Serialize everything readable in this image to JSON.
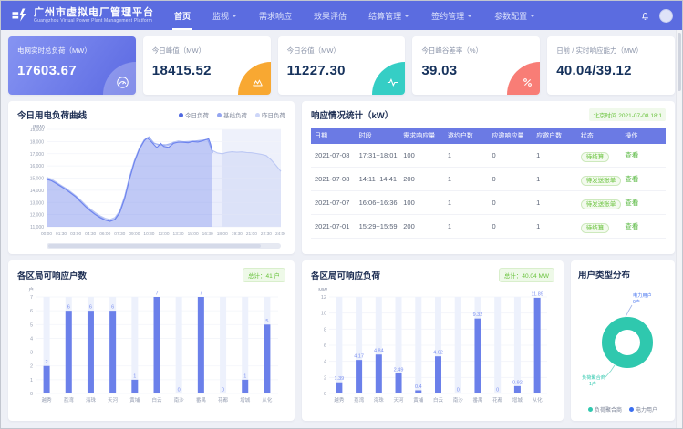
{
  "theme": {
    "header_bg": "#5b6ce0",
    "accent_blue": "#6b80ea",
    "bar_track": "#edf1fc",
    "value_label": "#7b8ff0",
    "axis_label": "#9aa2b4",
    "green": "#67c23a",
    "value_text": "#16325c"
  },
  "header": {
    "title": "广州市虚拟电厂管理平台",
    "subtitle": "Guangzhou Virtual Power Plant Management Platform",
    "nav": [
      {
        "label": "首页",
        "active": true,
        "caret": false
      },
      {
        "label": "监视",
        "active": false,
        "caret": true
      },
      {
        "label": "需求响应",
        "active": false,
        "caret": false
      },
      {
        "label": "效果评估",
        "active": false,
        "caret": false
      },
      {
        "label": "结算管理",
        "active": false,
        "caret": true
      },
      {
        "label": "签约管理",
        "active": false,
        "caret": true
      },
      {
        "label": "参数配置",
        "active": false,
        "caret": true
      }
    ]
  },
  "kpi_cards": [
    {
      "label": "电网实时总负荷（MW）",
      "value": "17603.67",
      "icon": "gauge-icon",
      "accent": "rgba(255,255,255,0.25)",
      "highlight": true
    },
    {
      "label": "今日峰值（MW）",
      "value": "18415.52",
      "icon": "peak-icon",
      "accent": "#f8a832",
      "highlight": false
    },
    {
      "label": "今日谷值（MW）",
      "value": "11227.30",
      "icon": "pulse-icon",
      "accent": "#35cec5",
      "highlight": false
    },
    {
      "label": "今日峰谷差率（%）",
      "value": "39.03",
      "icon": "percent-icon",
      "accent": "#f87d76",
      "highlight": false
    },
    {
      "label": "日前 / 实时响应能力（MW）",
      "value": "40.04/39.12",
      "icon": null,
      "accent": null,
      "highlight": false
    }
  ],
  "chart_data": [
    {
      "id": "load_chart",
      "type": "area",
      "title": "今日用电负荷曲线",
      "unit": "(MW)",
      "ylim": [
        11000,
        19000
      ],
      "ytick_step": 1000,
      "xticks": [
        "00:00",
        "01:30",
        "03:00",
        "04:30",
        "06:00",
        "07:30",
        "09:00",
        "10:30",
        "12:00",
        "13:30",
        "15:00",
        "16:30",
        "18:00",
        "19:30",
        "21:00",
        "22:30",
        "24:00"
      ],
      "highlight_band": [
        18,
        24
      ],
      "legend": [
        {
          "name": "今日负荷",
          "color": "#4f68e0"
        },
        {
          "name": "基线负荷",
          "color": "#94a5f0"
        },
        {
          "name": "昨日负荷",
          "color": "#cdd6f8"
        }
      ],
      "series": [
        {
          "name": "昨日负荷",
          "stroke": "#bcc8f4",
          "fill": "rgba(130,150,238,0.16)",
          "points": [
            [
              0,
              15060
            ],
            [
              0.5,
              14920
            ],
            [
              1,
              14660
            ],
            [
              1.5,
              14400
            ],
            [
              2,
              14160
            ],
            [
              2.5,
              13860
            ],
            [
              3,
              13560
            ],
            [
              3.5,
              13200
            ],
            [
              4,
              12800
            ],
            [
              4.5,
              12460
            ],
            [
              5,
              12160
            ],
            [
              5.5,
              11900
            ],
            [
              6,
              11700
            ],
            [
              6.5,
              11600
            ],
            [
              7,
              11760
            ],
            [
              7.5,
              12300
            ],
            [
              8,
              13500
            ],
            [
              8.5,
              15100
            ],
            [
              9,
              16450
            ],
            [
              9.5,
              17450
            ],
            [
              10,
              18150
            ],
            [
              10.5,
              18350
            ],
            [
              11,
              17900
            ],
            [
              11.5,
              17700
            ],
            [
              12,
              17760
            ],
            [
              12.5,
              17700
            ],
            [
              13,
              17950
            ],
            [
              13.5,
              18050
            ],
            [
              14,
              18000
            ],
            [
              14.5,
              17950
            ],
            [
              15,
              18050
            ],
            [
              15.5,
              18000
            ],
            [
              16,
              18100
            ],
            [
              16.5,
              18160
            ],
            [
              17,
              17260
            ],
            [
              17.5,
              17060
            ],
            [
              18,
              17000
            ],
            [
              18.5,
              17110
            ],
            [
              19,
              17160
            ],
            [
              19.5,
              17120
            ],
            [
              20,
              17150
            ],
            [
              20.5,
              17100
            ],
            [
              21,
              17080
            ],
            [
              21.5,
              17020
            ],
            [
              22,
              16950
            ],
            [
              22.5,
              16850
            ],
            [
              23,
              16500
            ],
            [
              23.5,
              16050
            ],
            [
              24,
              15550
            ]
          ]
        },
        {
          "name": "基线负荷",
          "stroke": "#9fb0f2",
          "fill": "rgba(130,150,238,0.10)",
          "points": [
            [
              0,
              15000
            ],
            [
              1,
              14600
            ],
            [
              2,
              14100
            ],
            [
              3,
              13500
            ],
            [
              4,
              12700
            ],
            [
              5,
              12050
            ],
            [
              6,
              11600
            ],
            [
              6.5,
              11500
            ],
            [
              7,
              11650
            ],
            [
              7.5,
              12250
            ],
            [
              8,
              13450
            ],
            [
              8.5,
              15050
            ],
            [
              9,
              16400
            ],
            [
              9.5,
              17400
            ],
            [
              10,
              18100
            ],
            [
              10.5,
              18380
            ],
            [
              11,
              17850
            ],
            [
              12,
              17680
            ],
            [
              13,
              17900
            ],
            [
              14,
              17980
            ],
            [
              15,
              18030
            ],
            [
              16,
              18120
            ],
            [
              16.5,
              18180
            ],
            [
              17,
              17150
            ]
          ]
        },
        {
          "name": "今日负荷",
          "stroke": "#6d83ee",
          "fill": "rgba(120,140,238,0.30)",
          "points": [
            [
              0,
              14900
            ],
            [
              0.5,
              14780
            ],
            [
              1,
              14550
            ],
            [
              1.5,
              14300
            ],
            [
              2,
              14050
            ],
            [
              2.5,
              13750
            ],
            [
              3,
              13450
            ],
            [
              3.5,
              13050
            ],
            [
              4,
              12650
            ],
            [
              4.5,
              12300
            ],
            [
              5,
              12000
            ],
            [
              5.5,
              11750
            ],
            [
              6,
              11550
            ],
            [
              6.5,
              11450
            ],
            [
              7,
              11600
            ],
            [
              7.5,
              12150
            ],
            [
              8,
              13300
            ],
            [
              8.5,
              14900
            ],
            [
              9,
              16300
            ],
            [
              9.5,
              17350
            ],
            [
              10,
              18050
            ],
            [
              10.3,
              18300
            ],
            [
              10.6,
              18100
            ],
            [
              11,
              17750
            ],
            [
              11.3,
              17500
            ],
            [
              11.7,
              17850
            ],
            [
              12,
              17600
            ],
            [
              12.5,
              17520
            ],
            [
              13,
              17850
            ],
            [
              13.5,
              17950
            ],
            [
              14,
              17940
            ],
            [
              14.5,
              17900
            ],
            [
              15,
              18000
            ],
            [
              15.5,
              17960
            ],
            [
              16,
              18060
            ],
            [
              16.3,
              18150
            ],
            [
              16.6,
              18220
            ],
            [
              16.8,
              17800
            ],
            [
              17,
              17060
            ]
          ]
        }
      ]
    },
    {
      "id": "district_users_chart",
      "type": "bar",
      "title": "各区局可响应户数",
      "total_badge": "总计：41 户",
      "unit": "户",
      "categories": [
        "越秀",
        "荔湾",
        "海珠",
        "天河",
        "黄埔",
        "白云",
        "南沙",
        "番禺",
        "花都",
        "增城",
        "从化"
      ],
      "values": [
        2,
        6,
        6,
        6,
        1,
        7,
        0,
        7,
        0,
        1,
        5
      ],
      "ymax": 7,
      "ytick_step": 1
    },
    {
      "id": "district_load_chart",
      "type": "bar",
      "title": "各区局可响应负荷",
      "total_badge": "总计：40.04 MW",
      "unit": "MW",
      "categories": [
        "越秀",
        "荔湾",
        "海珠",
        "天河",
        "黄埔",
        "白云",
        "南沙",
        "番禺",
        "花都",
        "增城",
        "从化"
      ],
      "values": [
        1.39,
        4.17,
        4.84,
        2.49,
        0.4,
        4.62,
        0,
        9.32,
        0,
        0.92,
        11.89
      ],
      "ymax": 12,
      "ytick_step": 2
    },
    {
      "id": "user_type_chart",
      "type": "pie",
      "title": "用户类型分布",
      "slices": [
        {
          "label": "负荷聚合商",
          "count": "1户",
          "color": "#2fc8ae"
        },
        {
          "label": "电力用户",
          "count": "0户",
          "color": "#3a6ef0"
        }
      ]
    }
  ],
  "response_table": {
    "title": "响应情况统计（kW）",
    "timestamp": "北京时间 2021-07-08 18:1",
    "columns": [
      "日期",
      "时段",
      "需求响应量",
      "邀约户数",
      "应邀响应量",
      "应邀户数",
      "状态",
      "操作"
    ],
    "action_label": "查看",
    "rows": [
      {
        "date": "2021-07-08",
        "period": "17:31~18:01",
        "demand": "100",
        "invited": "1",
        "responded": "0",
        "resp_users": "1",
        "status": "待结算"
      },
      {
        "date": "2021-07-08",
        "period": "14:11~14:41",
        "demand": "200",
        "invited": "1",
        "responded": "0",
        "resp_users": "1",
        "status": "待发送账单"
      },
      {
        "date": "2021-07-07",
        "period": "16:06~16:36",
        "demand": "100",
        "invited": "1",
        "responded": "0",
        "resp_users": "1",
        "status": "待发送账单"
      },
      {
        "date": "2021-07-01",
        "period": "15:29~15:59",
        "demand": "200",
        "invited": "1",
        "responded": "0",
        "resp_users": "1",
        "status": "待结算"
      }
    ]
  }
}
